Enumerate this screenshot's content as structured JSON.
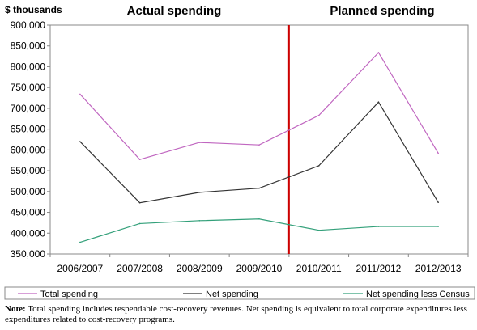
{
  "chart_data": {
    "type": "line",
    "y_unit_label": "$ thousands",
    "sections": [
      "Actual spending",
      "Planned spending"
    ],
    "categories": [
      "2006/2007",
      "2007/2008",
      "2008/2009",
      "2009/2010",
      "2010/2011",
      "2011/2012",
      "2012/2013"
    ],
    "ylim": [
      350000,
      900000
    ],
    "yticks": [
      350000,
      400000,
      450000,
      500000,
      550000,
      600000,
      650000,
      700000,
      750000,
      800000,
      850000,
      900000
    ],
    "ytick_labels": [
      "350,000",
      "400,000",
      "450,000",
      "500,000",
      "550,000",
      "600,000",
      "650,000",
      "700,000",
      "750,000",
      "800,000",
      "850,000",
      "900,000"
    ],
    "grid": false,
    "legend_position": "bottom",
    "divider_between": [
      "2009/2010",
      "2010/2011"
    ],
    "divider_color": "#cc0000",
    "series": [
      {
        "name": "Total spending",
        "color": "#c066c0",
        "values": [
          734000,
          577000,
          618000,
          612000,
          683000,
          834000,
          592000
        ]
      },
      {
        "name": "Net spending",
        "color": "#333333",
        "values": [
          620000,
          473000,
          498000,
          508000,
          562000,
          715000,
          474000
        ]
      },
      {
        "name": "Net spending less Census",
        "color": "#33a07a",
        "values": [
          378000,
          423000,
          430000,
          434000,
          407000,
          416000,
          416000
        ]
      }
    ]
  },
  "note": {
    "label": "Note:",
    "text": "Total spending includes respendable cost-recovery revenues. Net spending is equivalent to total corporate expenditures less expenditures related to cost-recovery programs."
  }
}
